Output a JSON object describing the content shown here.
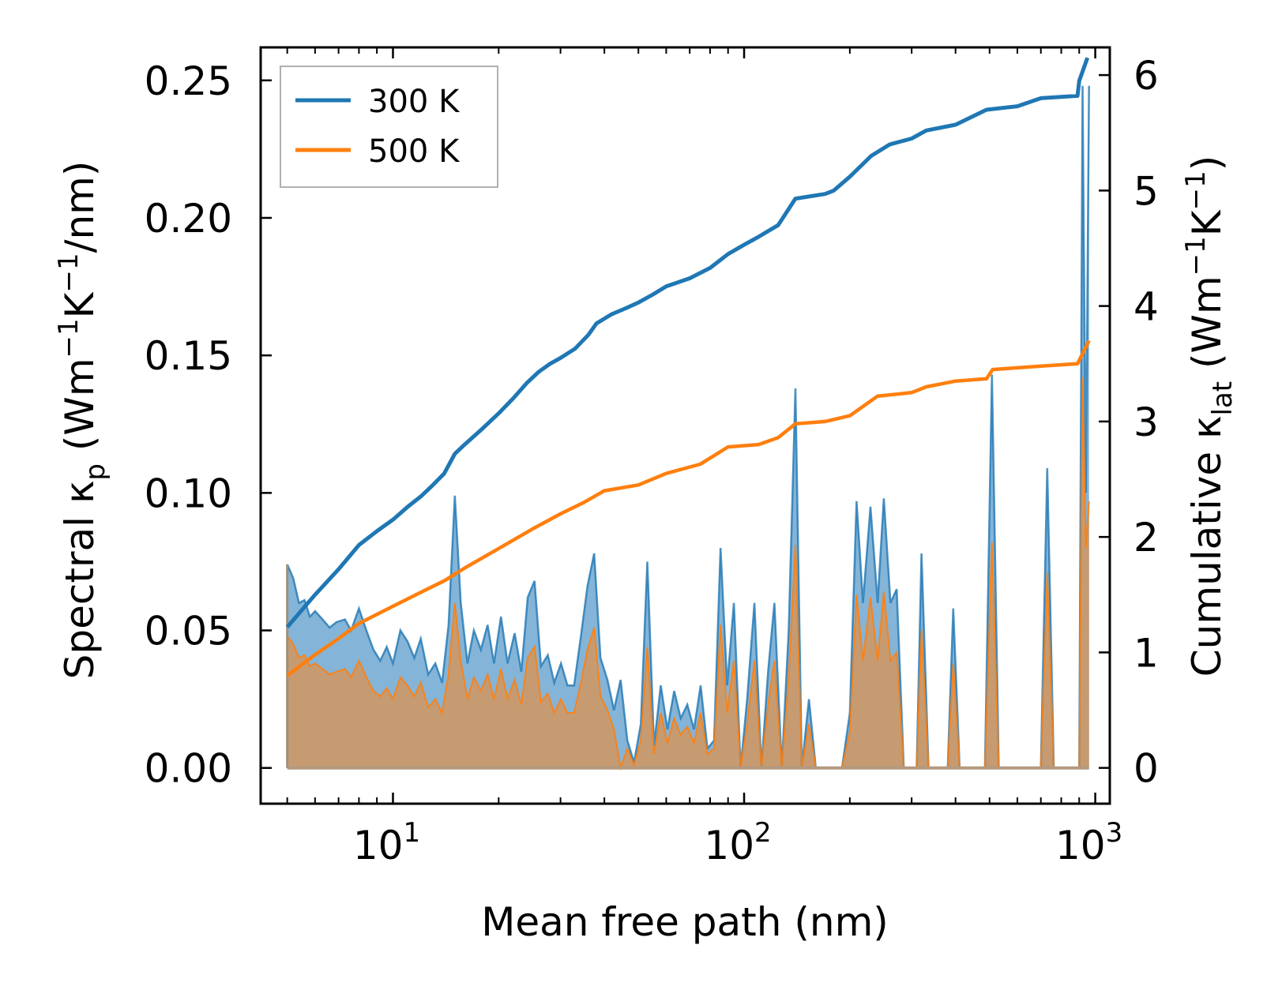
{
  "chart_data": {
    "type": "line",
    "xscale": "log",
    "xlim": [
      4.2,
      1100
    ],
    "xlabel": "Mean free path (nm)",
    "x_tick_values": [
      10,
      100,
      1000
    ],
    "x_tick_labels": [
      {
        "base": "10",
        "exp": "1"
      },
      {
        "base": "10",
        "exp": "2"
      },
      {
        "base": "10",
        "exp": "3"
      }
    ],
    "left_axis": {
      "label_parts": [
        "Spectral κ",
        "p",
        " (Wm",
        "−1",
        "K",
        "−1",
        "/nm)"
      ],
      "ylim": [
        -0.013,
        0.262
      ],
      "ticks": [
        0.0,
        0.05,
        0.1,
        0.15,
        0.2,
        0.25
      ],
      "tick_labels": [
        "0.00",
        "0.05",
        "0.10",
        "0.15",
        "0.20",
        "0.25"
      ]
    },
    "right_axis": {
      "label_parts": [
        "Cumulative κ",
        "lat",
        " (Wm",
        "−1",
        "K",
        "−1",
        ")"
      ],
      "ylim": [
        -0.31,
        6.24
      ],
      "ticks": [
        0,
        1,
        2,
        3,
        4,
        5,
        6
      ],
      "tick_labels": [
        "0",
        "1",
        "2",
        "3",
        "4",
        "5",
        "6"
      ]
    },
    "colors": {
      "s300": "#1f77b4",
      "s500": "#ff7f0e",
      "fill300": "#5b9bc9",
      "fill500": "#c99a6c"
    },
    "legend": {
      "position": "top-left",
      "entries": [
        "300 K",
        "500 K"
      ]
    },
    "series": [
      {
        "name": "300 K",
        "axis": "left",
        "kind": "spectral",
        "points": [
          [
            5.0,
            0.074
          ],
          [
            5.2,
            0.069
          ],
          [
            5.4,
            0.06
          ],
          [
            5.6,
            0.061
          ],
          [
            5.8,
            0.055
          ],
          [
            6.0,
            0.057
          ],
          [
            6.3,
            0.054
          ],
          [
            6.6,
            0.051
          ],
          [
            6.9,
            0.053
          ],
          [
            7.3,
            0.054
          ],
          [
            7.6,
            0.05
          ],
          [
            8.0,
            0.058
          ],
          [
            8.4,
            0.05
          ],
          [
            8.8,
            0.043
          ],
          [
            9.2,
            0.039
          ],
          [
            9.6,
            0.044
          ],
          [
            10.0,
            0.038
          ],
          [
            10.5,
            0.05
          ],
          [
            11.0,
            0.046
          ],
          [
            11.5,
            0.04
          ],
          [
            12.0,
            0.047
          ],
          [
            12.6,
            0.034
          ],
          [
            13.2,
            0.038
          ],
          [
            13.8,
            0.031
          ],
          [
            14.4,
            0.052
          ],
          [
            15.0,
            0.099
          ],
          [
            15.6,
            0.06
          ],
          [
            16.3,
            0.038
          ],
          [
            17.0,
            0.05
          ],
          [
            17.8,
            0.043
          ],
          [
            18.6,
            0.052
          ],
          [
            19.4,
            0.038
          ],
          [
            20.3,
            0.055
          ],
          [
            21.2,
            0.038
          ],
          [
            22.2,
            0.049
          ],
          [
            23.2,
            0.035
          ],
          [
            24.2,
            0.062
          ],
          [
            25.3,
            0.068
          ],
          [
            26.4,
            0.037
          ],
          [
            27.6,
            0.041
          ],
          [
            28.8,
            0.031
          ],
          [
            30.1,
            0.038
          ],
          [
            31.4,
            0.03
          ],
          [
            32.8,
            0.03
          ],
          [
            34.3,
            0.048
          ],
          [
            35.8,
            0.066
          ],
          [
            37.4,
            0.078
          ],
          [
            39.0,
            0.04
          ],
          [
            40.8,
            0.032
          ],
          [
            42.6,
            0.021
          ],
          [
            44.5,
            0.032
          ],
          [
            46.5,
            0.01
          ],
          [
            48.6,
            0.002
          ],
          [
            50.8,
            0.016
          ],
          [
            53.0,
            0.075
          ],
          [
            55.4,
            0.008
          ],
          [
            57.9,
            0.03
          ],
          [
            60.5,
            0.014
          ],
          [
            63.2,
            0.028
          ],
          [
            66.0,
            0.018
          ],
          [
            68.9,
            0.023
          ],
          [
            72.0,
            0.014
          ],
          [
            75.2,
            0.03
          ],
          [
            78.6,
            0.007
          ],
          [
            82.1,
            0.01
          ],
          [
            85.7,
            0.08
          ],
          [
            89.5,
            0.03
          ],
          [
            93.5,
            0.06
          ],
          [
            97.7,
            0.0
          ],
          [
            102,
            0.025
          ],
          [
            107,
            0.06
          ],
          [
            112,
            0.0
          ],
          [
            117,
            0.035
          ],
          [
            122,
            0.06
          ],
          [
            128,
            0.0
          ],
          [
            134,
            0.05
          ],
          [
            140,
            0.138
          ],
          [
            146,
            0.0
          ],
          [
            153,
            0.025
          ],
          [
            160,
            0.0
          ],
          [
            190,
            0.0
          ],
          [
            200,
            0.02
          ],
          [
            209,
            0.097
          ],
          [
            218,
            0.06
          ],
          [
            229,
            0.095
          ],
          [
            240,
            0.06
          ],
          [
            250,
            0.098
          ],
          [
            261,
            0.06
          ],
          [
            272,
            0.065
          ],
          [
            285,
            0.0
          ],
          [
            310,
            0.0
          ],
          [
            320,
            0.078
          ],
          [
            335,
            0.0
          ],
          [
            380,
            0.0
          ],
          [
            394,
            0.058
          ],
          [
            411,
            0.0
          ],
          [
            485,
            0.0
          ],
          [
            508,
            0.143
          ],
          [
            531,
            0.0
          ],
          [
            700,
            0.0
          ],
          [
            730,
            0.109
          ],
          [
            762,
            0.0
          ],
          [
            900,
            0.0
          ],
          [
            920,
            0.248
          ],
          [
            940,
            0.1
          ],
          [
            960,
            0.248
          ]
        ]
      },
      {
        "name": "500 K",
        "axis": "left",
        "kind": "spectral",
        "points": [
          [
            5.0,
            0.048
          ],
          [
            5.2,
            0.045
          ],
          [
            5.4,
            0.04
          ],
          [
            5.6,
            0.041
          ],
          [
            5.8,
            0.037
          ],
          [
            6.0,
            0.038
          ],
          [
            6.3,
            0.036
          ],
          [
            6.6,
            0.034
          ],
          [
            6.9,
            0.035
          ],
          [
            7.3,
            0.036
          ],
          [
            7.6,
            0.033
          ],
          [
            8.0,
            0.039
          ],
          [
            8.4,
            0.033
          ],
          [
            8.8,
            0.028
          ],
          [
            9.2,
            0.026
          ],
          [
            9.6,
            0.029
          ],
          [
            10.0,
            0.025
          ],
          [
            10.5,
            0.033
          ],
          [
            11.0,
            0.03
          ],
          [
            11.5,
            0.026
          ],
          [
            12.0,
            0.031
          ],
          [
            12.6,
            0.022
          ],
          [
            13.2,
            0.025
          ],
          [
            13.8,
            0.02
          ],
          [
            14.4,
            0.034
          ],
          [
            15.0,
            0.06
          ],
          [
            15.6,
            0.039
          ],
          [
            16.3,
            0.025
          ],
          [
            17.0,
            0.033
          ],
          [
            17.8,
            0.028
          ],
          [
            18.6,
            0.034
          ],
          [
            19.4,
            0.025
          ],
          [
            20.3,
            0.036
          ],
          [
            21.2,
            0.025
          ],
          [
            22.2,
            0.032
          ],
          [
            23.2,
            0.023
          ],
          [
            24.2,
            0.04
          ],
          [
            25.3,
            0.044
          ],
          [
            26.4,
            0.024
          ],
          [
            27.6,
            0.027
          ],
          [
            28.8,
            0.02
          ],
          [
            30.1,
            0.025
          ],
          [
            31.4,
            0.02
          ],
          [
            32.8,
            0.02
          ],
          [
            34.3,
            0.031
          ],
          [
            35.8,
            0.043
          ],
          [
            37.4,
            0.051
          ],
          [
            39.0,
            0.026
          ],
          [
            40.8,
            0.021
          ],
          [
            42.6,
            0.014
          ],
          [
            44.5,
            0.0
          ],
          [
            46.5,
            0.007
          ],
          [
            48.6,
            0.001
          ],
          [
            50.8,
            0.01
          ],
          [
            53.0,
            0.044
          ],
          [
            55.4,
            0.005
          ],
          [
            57.9,
            0.02
          ],
          [
            60.5,
            0.009
          ],
          [
            63.2,
            0.018
          ],
          [
            66.0,
            0.012
          ],
          [
            68.9,
            0.015
          ],
          [
            72.0,
            0.009
          ],
          [
            75.2,
            0.02
          ],
          [
            78.6,
            0.005
          ],
          [
            82.1,
            0.007
          ],
          [
            85.7,
            0.052
          ],
          [
            89.5,
            0.02
          ],
          [
            93.5,
            0.039
          ],
          [
            97.7,
            0.0
          ],
          [
            102,
            0.016
          ],
          [
            107,
            0.039
          ],
          [
            112,
            0.0
          ],
          [
            117,
            0.023
          ],
          [
            122,
            0.039
          ],
          [
            128,
            0.0
          ],
          [
            134,
            0.033
          ],
          [
            140,
            0.081
          ],
          [
            146,
            0.0
          ],
          [
            153,
            0.016
          ],
          [
            160,
            0.0
          ],
          [
            190,
            0.0
          ],
          [
            200,
            0.013
          ],
          [
            209,
            0.063
          ],
          [
            218,
            0.039
          ],
          [
            229,
            0.062
          ],
          [
            240,
            0.039
          ],
          [
            250,
            0.064
          ],
          [
            261,
            0.039
          ],
          [
            272,
            0.042
          ],
          [
            285,
            0.0
          ],
          [
            310,
            0.0
          ],
          [
            320,
            0.05
          ],
          [
            335,
            0.0
          ],
          [
            380,
            0.0
          ],
          [
            394,
            0.038
          ],
          [
            411,
            0.0
          ],
          [
            485,
            0.0
          ],
          [
            508,
            0.082
          ],
          [
            531,
            0.0
          ],
          [
            700,
            0.0
          ],
          [
            730,
            0.071
          ],
          [
            762,
            0.0
          ],
          [
            900,
            0.0
          ],
          [
            920,
            0.142
          ],
          [
            940,
            0.08
          ],
          [
            960,
            0.097
          ]
        ]
      },
      {
        "name": "300 K",
        "axis": "right",
        "kind": "cumulative",
        "points": [
          [
            5.0,
            1.22
          ],
          [
            6.0,
            1.5
          ],
          [
            7.0,
            1.72
          ],
          [
            8.0,
            1.93
          ],
          [
            9.0,
            2.05
          ],
          [
            10.0,
            2.15
          ],
          [
            11.0,
            2.26
          ],
          [
            12.0,
            2.35
          ],
          [
            13.0,
            2.45
          ],
          [
            14.0,
            2.55
          ],
          [
            15.0,
            2.72
          ],
          [
            16.0,
            2.8
          ],
          [
            18.0,
            2.94
          ],
          [
            20.0,
            3.07
          ],
          [
            22.0,
            3.2
          ],
          [
            24.0,
            3.33
          ],
          [
            26.0,
            3.43
          ],
          [
            28.0,
            3.5
          ],
          [
            30.0,
            3.55
          ],
          [
            33.0,
            3.63
          ],
          [
            36.0,
            3.75
          ],
          [
            38.0,
            3.85
          ],
          [
            42.0,
            3.93
          ],
          [
            46.0,
            3.98
          ],
          [
            50.0,
            4.03
          ],
          [
            55.0,
            4.1
          ],
          [
            60.0,
            4.17
          ],
          [
            70.0,
            4.24
          ],
          [
            80.0,
            4.33
          ],
          [
            90.0,
            4.45
          ],
          [
            100.0,
            4.53
          ],
          [
            110.0,
            4.6
          ],
          [
            125.0,
            4.7
          ],
          [
            140.0,
            4.93
          ],
          [
            170.0,
            4.97
          ],
          [
            180.0,
            5.0
          ],
          [
            200.0,
            5.12
          ],
          [
            230.0,
            5.3
          ],
          [
            260.0,
            5.4
          ],
          [
            300.0,
            5.45
          ],
          [
            330.0,
            5.52
          ],
          [
            400.0,
            5.57
          ],
          [
            490.0,
            5.7
          ],
          [
            600.0,
            5.73
          ],
          [
            700.0,
            5.8
          ],
          [
            890.0,
            5.82
          ],
          [
            900.0,
            5.95
          ],
          [
            950.0,
            6.15
          ]
        ]
      },
      {
        "name": "500 K",
        "axis": "right",
        "kind": "cumulative",
        "points": [
          [
            5.0,
            0.8
          ],
          [
            6.0,
            0.98
          ],
          [
            7.0,
            1.12
          ],
          [
            8.0,
            1.25
          ],
          [
            10.0,
            1.4
          ],
          [
            12.0,
            1.52
          ],
          [
            14.0,
            1.62
          ],
          [
            16.0,
            1.73
          ],
          [
            20.0,
            1.9
          ],
          [
            25.0,
            2.07
          ],
          [
            30.0,
            2.2
          ],
          [
            35.0,
            2.3
          ],
          [
            40.0,
            2.4
          ],
          [
            50.0,
            2.45
          ],
          [
            60.0,
            2.55
          ],
          [
            75.0,
            2.63
          ],
          [
            90.0,
            2.78
          ],
          [
            110.0,
            2.8
          ],
          [
            125.0,
            2.86
          ],
          [
            140.0,
            2.98
          ],
          [
            170.0,
            3.0
          ],
          [
            200.0,
            3.05
          ],
          [
            240.0,
            3.22
          ],
          [
            300.0,
            3.25
          ],
          [
            330.0,
            3.3
          ],
          [
            400.0,
            3.35
          ],
          [
            490.0,
            3.37
          ],
          [
            510.0,
            3.45
          ],
          [
            700.0,
            3.48
          ],
          [
            890.0,
            3.5
          ],
          [
            960.0,
            3.7
          ]
        ]
      }
    ]
  }
}
